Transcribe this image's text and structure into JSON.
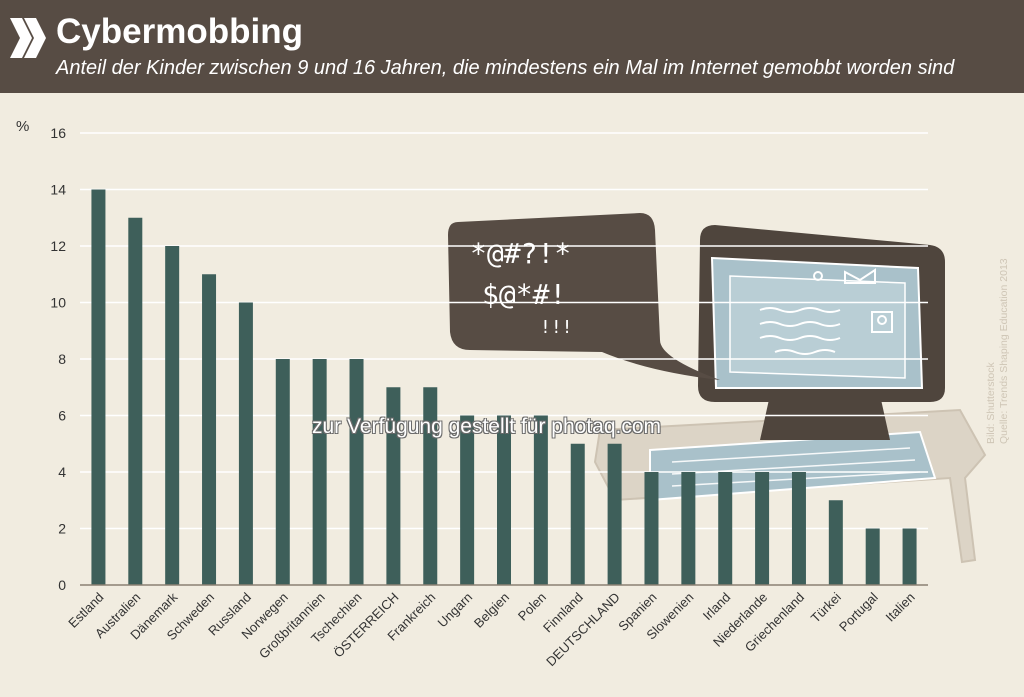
{
  "header": {
    "title": "Cybermobbing",
    "subtitle": "Anteil der Kinder zwischen 9 und 16 Jahren, die mindestens ein Mal im Internet gemobbt worden sind"
  },
  "watermark": "zur Verfügung gestellt für photaq.com",
  "credit": {
    "line1": "Bild: Shutterstock",
    "line2": "Quelle: Trends Shaping Education 2013"
  },
  "illustration": {
    "speech_line1": "*@#?!*",
    "speech_line2": "$@*#!",
    "speech_line3": "!!!"
  },
  "colors": {
    "header_bg": "#574c44",
    "page_bg": "#f1ece0",
    "bar": "#3e5f5a",
    "gridline": "#ffffff",
    "axis_text": "#333333"
  },
  "chart_data": {
    "type": "bar",
    "ylabel": "%",
    "ylim": [
      0,
      16
    ],
    "yticks": [
      0,
      2,
      4,
      6,
      8,
      10,
      12,
      14,
      16
    ],
    "grid": true,
    "categories": [
      "Estland",
      "Australien",
      "Dänemark",
      "Schweden",
      "Russland",
      "Norwegen",
      "Großbritannien",
      "Tschechien",
      "ÖSTERREICH",
      "Frankreich",
      "Ungarn",
      "Belgien",
      "Polen",
      "Finnland",
      "DEUTSCHLAND",
      "Spanien",
      "Slowenien",
      "Irland",
      "Niederlande",
      "Griechenland",
      "Türkei",
      "Portugal",
      "Italien"
    ],
    "values": [
      14,
      13,
      12,
      11,
      10,
      8,
      8,
      8,
      7,
      7,
      6,
      6,
      6,
      5,
      5,
      4,
      4,
      4,
      4,
      4,
      3,
      2,
      2
    ]
  }
}
